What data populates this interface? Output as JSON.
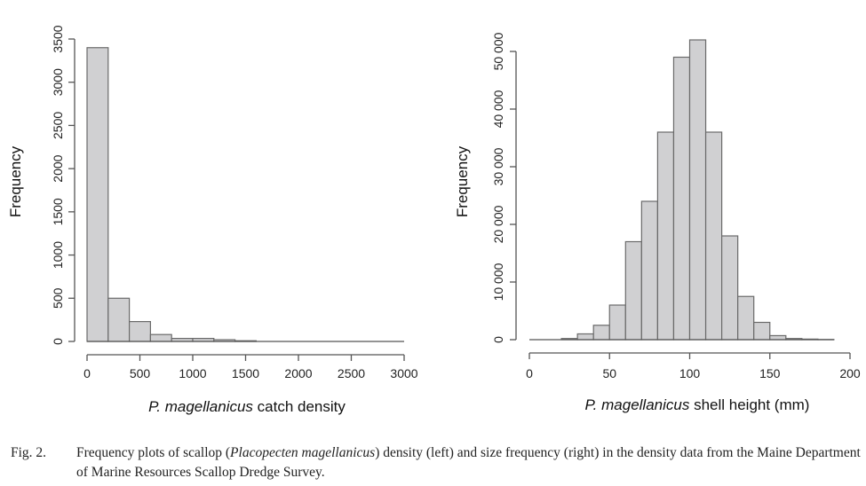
{
  "chart_data": [
    {
      "type": "bar",
      "subtype": "histogram",
      "xlabel_italic": "P. magellanicus",
      "xlabel_rest": " catch density",
      "ylabel": "Frequency",
      "bin_edges": [
        0,
        200,
        400,
        600,
        800,
        1000,
        1200,
        1400,
        1600
      ],
      "values": [
        3400,
        500,
        230,
        80,
        35,
        35,
        20,
        8
      ],
      "xlim": [
        0,
        3000
      ],
      "ylim": [
        0,
        3500
      ],
      "xticks": [
        "0",
        "500",
        "1000",
        "1500",
        "2000",
        "2500",
        "3000"
      ],
      "yticks": [
        "0",
        "500",
        "1000",
        "1500",
        "2000",
        "2500",
        "3000",
        "3500"
      ],
      "baseline_extent": 3000
    },
    {
      "type": "bar",
      "subtype": "histogram",
      "xlabel_italic": "P. magellanicus",
      "xlabel_rest": " shell height (mm)",
      "ylabel": "Frequency",
      "bin_edges": [
        0,
        10,
        20,
        30,
        40,
        50,
        60,
        70,
        80,
        90,
        100,
        110,
        120,
        130,
        140,
        150,
        160,
        170,
        180,
        190
      ],
      "values": [
        0,
        0,
        200,
        1000,
        2500,
        6000,
        17000,
        24000,
        36000,
        49000,
        52000,
        36000,
        18000,
        7500,
        3000,
        700,
        200,
        100,
        30
      ],
      "xlim": [
        0,
        200
      ],
      "ylim": [
        0,
        50000
      ],
      "xticks": [
        "0",
        "50",
        "100",
        "150",
        "200"
      ],
      "yticks": [
        "0",
        "10 000",
        "20 000",
        "30 000",
        "40 000",
        "50 000"
      ]
    }
  ],
  "caption": {
    "label": "Fig. 2.",
    "text_before": "Frequency plots of scallop (",
    "text_italic": "Placopecten magellanicus",
    "text_after": ") density (left) and size frequency (right) in the density data from the Maine Department of Marine Resources Scallop Dredge Survey."
  }
}
